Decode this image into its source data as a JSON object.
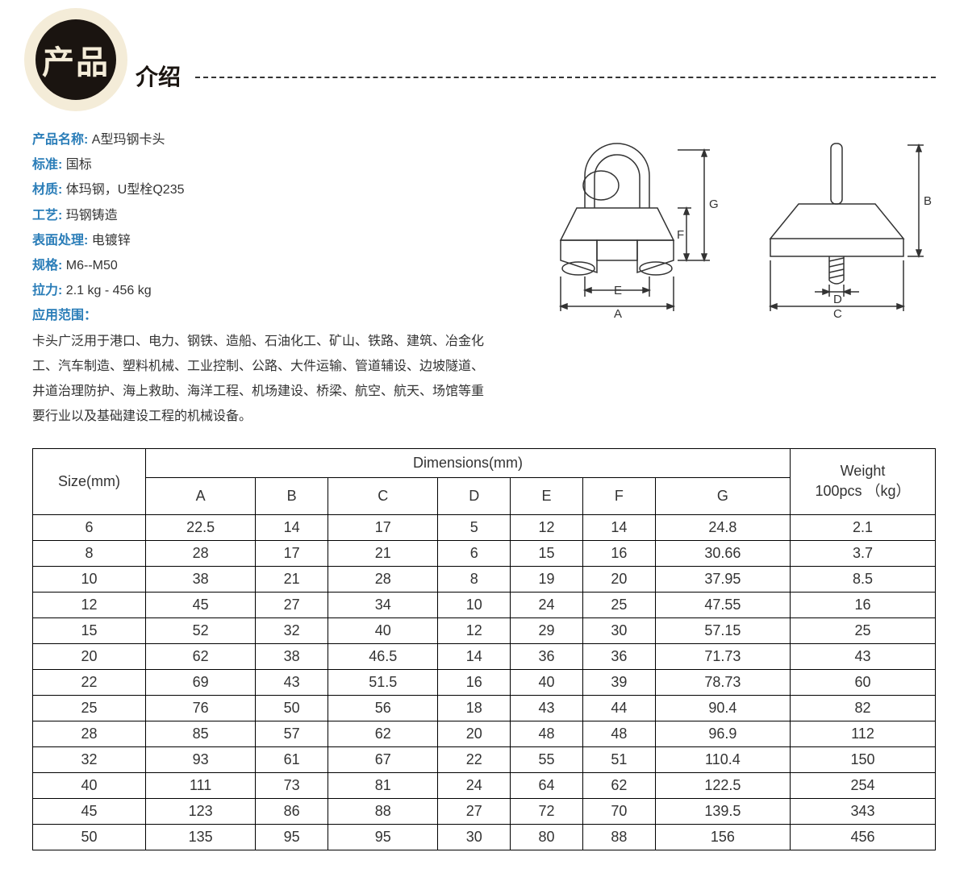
{
  "badge_text": "产品",
  "subtitle": "介绍",
  "specs": [
    {
      "label": "产品名称:",
      "value": " A型玛钢卡头"
    },
    {
      "label": "标准:",
      "value": " 国标"
    },
    {
      "label": "材质:",
      "value": " 体玛钢，U型栓Q235"
    },
    {
      "label": "工艺:",
      "value": " 玛钢铸造"
    },
    {
      "label": "表面处理:",
      "value": " 电镀锌"
    },
    {
      "label": "规格:",
      "value": " M6--M50"
    },
    {
      "label": "拉力:",
      "value": " 2.1 kg - 456 kg"
    },
    {
      "label": "应用范围：",
      "value": ""
    }
  ],
  "description": "卡头广泛用于港口、电力、钢铁、造船、石油化工、矿山、铁路、建筑、冶金化工、汽车制造、塑料机械、工业控制、公路、大件运输、管道辅设、边坡隧道、井道治理防护、海上救助、海洋工程、机场建设、桥梁、航空、航天、场馆等重要行业以及基础建设工程的机械设备。",
  "table": {
    "header_size": "Size(mm)",
    "header_dimensions": "Dimensions(mm)",
    "header_weight_l1": "Weight",
    "header_weight_l2": "100pcs （kg）",
    "dim_columns": [
      "A",
      "B",
      "C",
      "D",
      "E",
      "F",
      "G"
    ],
    "rows": [
      [
        "6",
        "22.5",
        "14",
        "17",
        "5",
        "12",
        "14",
        "24.8",
        "2.1"
      ],
      [
        "8",
        "28",
        "17",
        "21",
        "6",
        "15",
        "16",
        "30.66",
        "3.7"
      ],
      [
        "10",
        "38",
        "21",
        "28",
        "8",
        "19",
        "20",
        "37.95",
        "8.5"
      ],
      [
        "12",
        "45",
        "27",
        "34",
        "10",
        "24",
        "25",
        "47.55",
        "16"
      ],
      [
        "15",
        "52",
        "32",
        "40",
        "12",
        "29",
        "30",
        "57.15",
        "25"
      ],
      [
        "20",
        "62",
        "38",
        "46.5",
        "14",
        "36",
        "36",
        "71.73",
        "43"
      ],
      [
        "22",
        "69",
        "43",
        "51.5",
        "16",
        "40",
        "39",
        "78.73",
        "60"
      ],
      [
        "25",
        "76",
        "50",
        "56",
        "18",
        "43",
        "44",
        "90.4",
        "82"
      ],
      [
        "28",
        "85",
        "57",
        "62",
        "20",
        "48",
        "48",
        "96.9",
        "112"
      ],
      [
        "32",
        "93",
        "61",
        "67",
        "22",
        "55",
        "51",
        "110.4",
        "150"
      ],
      [
        "40",
        "111",
        "73",
        "81",
        "24",
        "64",
        "62",
        "122.5",
        "254"
      ],
      [
        "45",
        "123",
        "86",
        "88",
        "27",
        "72",
        "70",
        "139.5",
        "343"
      ],
      [
        "50",
        "135",
        "95",
        "95",
        "30",
        "80",
        "88",
        "156",
        "456"
      ]
    ]
  },
  "diagram_labels": {
    "A": "A",
    "B": "B",
    "C": "C",
    "D": "D",
    "E": "E",
    "F": "F",
    "G": "G"
  }
}
